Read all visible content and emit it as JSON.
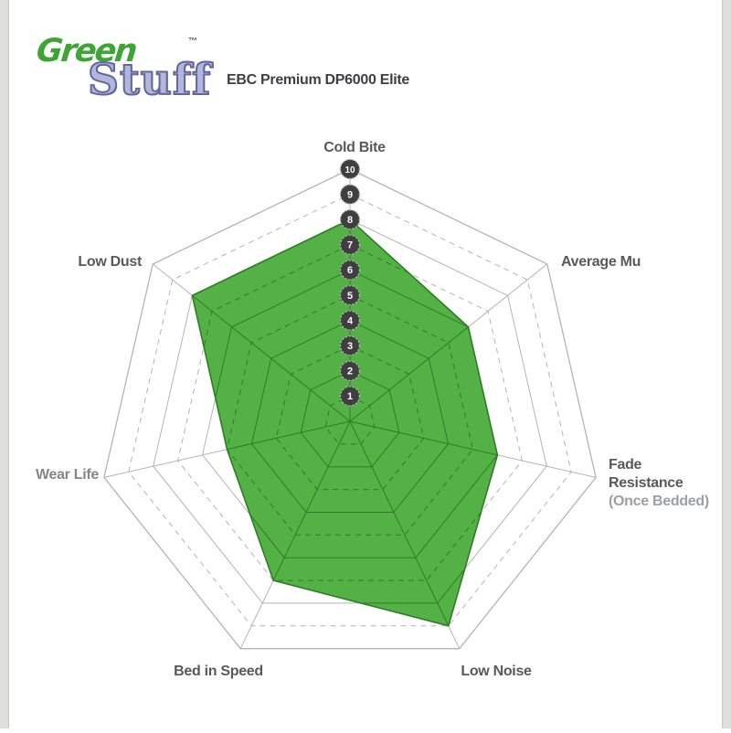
{
  "logo": {
    "word1": "Green",
    "word2": "Stuff",
    "trademark": "™",
    "word1_color": "#3CA534",
    "word2_color": "#B2B6DB"
  },
  "header": {
    "title": "EBC Premium DP6000 Elite"
  },
  "chart_data": {
    "type": "radar",
    "title": "EBC Premium DP6000 Elite",
    "axes": [
      {
        "label": "Cold Bite",
        "value": 8
      },
      {
        "label": "Average Mu",
        "value": 6
      },
      {
        "label": "Fade Resistance",
        "sublabel": "(Once Bedded)",
        "value": 6
      },
      {
        "label": "Low Noise",
        "value": 9
      },
      {
        "label": "Bed in Speed",
        "value": 7
      },
      {
        "label": "Wear Life",
        "value": 5
      },
      {
        "label": "Low Dust",
        "value": 8
      }
    ],
    "series": [
      {
        "name": "EBC Premium DP6000 Elite",
        "values": [
          8,
          6,
          6,
          9,
          7,
          5,
          8
        ]
      }
    ],
    "scale": {
      "min": 1,
      "max": 10,
      "ticks": [
        1,
        2,
        3,
        4,
        5,
        6,
        7,
        8,
        9,
        10
      ]
    },
    "grid": {
      "rings": 10,
      "odd_rings_dashed": true,
      "legend": "none"
    },
    "colors": {
      "series_fill": "#4DAE3F",
      "series_stroke": "#2F7D26",
      "grid_line": "#b4b4b4",
      "grid_line_inside": "#2F7D26",
      "tick_circle_fill": "#3f3f3f",
      "tick_circle_stroke": "#b4b4b4",
      "tick_text": "#ffffff",
      "label_dark": "#58595b",
      "label_light": "#9d9fa2",
      "wear_life_label": "#85868a"
    }
  }
}
